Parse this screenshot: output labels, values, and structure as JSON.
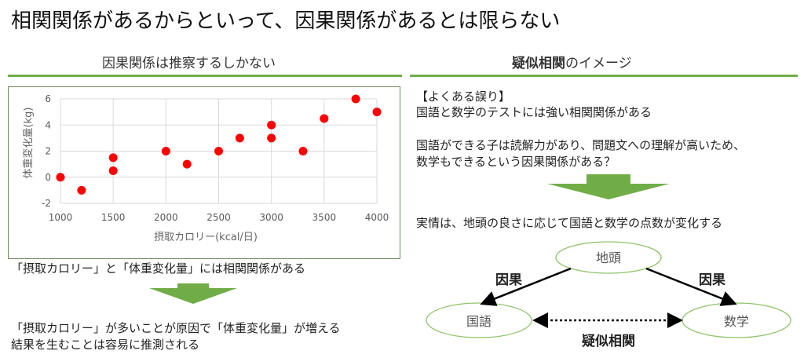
{
  "title": "相関関係があるからといって、因果関係があるとは限らない",
  "left": {
    "heading": "因果関係は推察するしかない",
    "statement": "「摂取カロリー」と「体重変化量」には相関関係がある",
    "conclusion_line1": "「摂取カロリー」が多いことが原因で「体重変化量」が増える",
    "conclusion_line2": "結果を生むことは容易に推測される"
  },
  "right": {
    "heading_bold": "疑似相関",
    "heading_rest": "のイメージ",
    "bracket": "【よくある誤り】",
    "line1": "国語と数学のテストには強い相関関係がある",
    "line2": "国語ができる子は読解力があり、問題文への理解が高いため、",
    "line3": "数学もできるという因果関係がある？",
    "reality": "実情は、地頭の良さに応じて国語と数学の点数が変化する",
    "diagram": {
      "top": "地頭",
      "left": "国語",
      "right": "数学",
      "cause_left": "因果",
      "cause_right": "因果",
      "spurious": "疑似相関"
    }
  },
  "colors": {
    "accent": "#70ad47",
    "point": "#ff0000"
  },
  "chart_data": {
    "type": "scatter",
    "xlabel": "摂取カロリー(kcal/日)",
    "ylabel": "体重変化量(kg)",
    "xlim": [
      1000,
      4000
    ],
    "ylim": [
      -2,
      6
    ],
    "xticks": [
      1000,
      1500,
      2000,
      2500,
      3000,
      3500,
      4000
    ],
    "yticks": [
      -2,
      0,
      2,
      4,
      6
    ],
    "grid": true,
    "points": [
      [
        1000,
        0
      ],
      [
        1200,
        -1
      ],
      [
        1500,
        1.5
      ],
      [
        1500,
        0.5
      ],
      [
        2000,
        2
      ],
      [
        2200,
        1
      ],
      [
        2500,
        2
      ],
      [
        2700,
        3
      ],
      [
        3000,
        4
      ],
      [
        3000,
        3
      ],
      [
        3300,
        2
      ],
      [
        3500,
        4.5
      ],
      [
        3800,
        6
      ],
      [
        4000,
        5
      ]
    ]
  }
}
